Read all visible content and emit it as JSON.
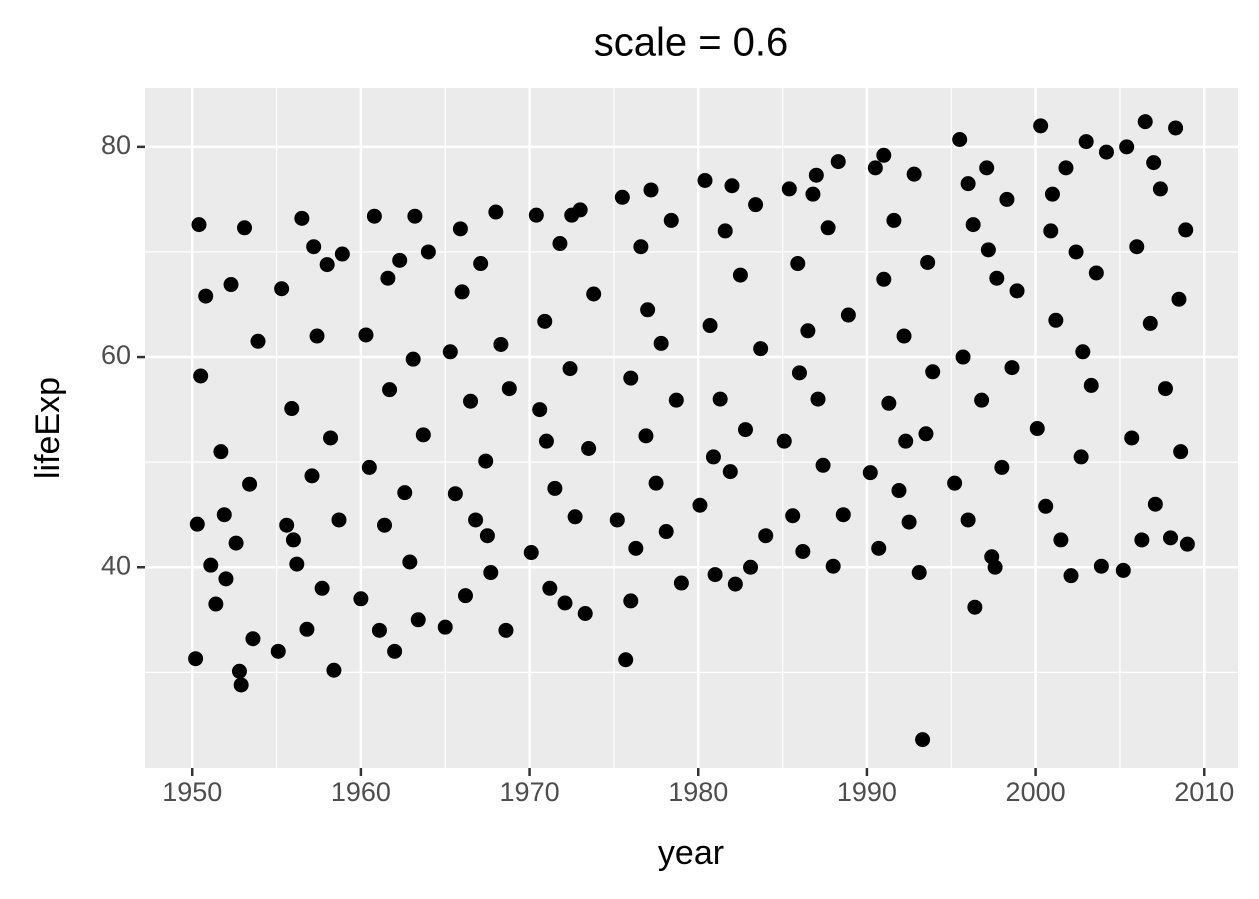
{
  "chart_data": {
    "type": "scatter",
    "title": "scale = 0.6",
    "x_label": "year",
    "y_label": "lifeExp",
    "x": [
      1950.2,
      1950.3,
      1950.5,
      1950.8,
      1951.1,
      1951.4,
      1951.7,
      1952.0,
      1952.3,
      1952.6,
      1952.9,
      1953.1,
      1953.4,
      1953.6,
      1953.9,
      1950.4,
      1952.8,
      1951.9,
      1955.1,
      1955.3,
      1955.6,
      1955.9,
      1956.2,
      1956.5,
      1956.8,
      1957.1,
      1957.4,
      1957.7,
      1958.0,
      1958.2,
      1958.4,
      1958.7,
      1958.9,
      1957.2,
      1956.0,
      1960.0,
      1960.3,
      1960.5,
      1960.8,
      1961.1,
      1961.4,
      1961.7,
      1962.0,
      1962.3,
      1962.6,
      1962.9,
      1963.2,
      1963.4,
      1963.7,
      1964.0,
      1961.6,
      1963.1,
      1965.0,
      1965.3,
      1965.6,
      1965.9,
      1966.2,
      1966.5,
      1966.8,
      1967.1,
      1967.4,
      1967.7,
      1968.0,
      1968.3,
      1968.6,
      1968.8,
      1966.0,
      1967.5,
      1970.1,
      1970.4,
      1970.6,
      1970.9,
      1971.2,
      1971.5,
      1971.8,
      1972.1,
      1972.4,
      1972.7,
      1973.0,
      1973.3,
      1973.5,
      1973.8,
      1972.5,
      1971.0,
      1975.2,
      1975.5,
      1975.7,
      1976.0,
      1976.3,
      1976.6,
      1976.9,
      1977.2,
      1977.5,
      1977.8,
      1978.1,
      1978.4,
      1978.7,
      1979.0,
      1977.0,
      1976.0,
      1980.1,
      1980.4,
      1980.7,
      1981.0,
      1981.3,
      1981.6,
      1981.9,
      1982.2,
      1982.5,
      1982.8,
      1983.1,
      1983.4,
      1983.7,
      1984.0,
      1982.0,
      1980.9,
      1985.1,
      1985.4,
      1985.6,
      1985.9,
      1986.2,
      1986.5,
      1986.8,
      1987.1,
      1987.4,
      1987.7,
      1988.0,
      1988.3,
      1988.6,
      1988.9,
      1987.0,
      1986.0,
      1990.2,
      1990.5,
      1990.7,
      1991.0,
      1991.3,
      1991.6,
      1991.9,
      1992.2,
      1992.5,
      1992.8,
      1993.1,
      1993.3,
      1993.6,
      1993.9,
      1991.0,
      1992.3,
      1993.5,
      1995.2,
      1995.5,
      1995.7,
      1996.0,
      1996.3,
      1996.4,
      1996.8,
      1997.1,
      1997.4,
      1997.7,
      1998.0,
      1998.3,
      1998.6,
      1998.9,
      1997.2,
      1996.0,
      1997.6,
      2000.1,
      2000.3,
      2000.6,
      2000.9,
      2001.2,
      2001.5,
      2001.8,
      2002.1,
      2002.4,
      2002.7,
      2003.0,
      2003.3,
      2003.6,
      2003.9,
      2004.2,
      2001.0,
      2002.8,
      2005.2,
      2005.4,
      2005.7,
      2006.0,
      2006.3,
      2006.5,
      2006.8,
      2007.1,
      2007.4,
      2007.7,
      2008.0,
      2008.3,
      2008.6,
      2008.9,
      2009.0,
      2007.0,
      2008.5
    ],
    "y": [
      31.3,
      44.1,
      58.2,
      65.8,
      40.2,
      36.5,
      51.0,
      38.9,
      66.9,
      42.3,
      28.8,
      72.3,
      47.9,
      33.2,
      61.5,
      72.6,
      30.1,
      45.0,
      32.0,
      66.5,
      44.0,
      55.1,
      40.3,
      73.2,
      34.1,
      48.7,
      62.0,
      38.0,
      68.8,
      52.3,
      30.2,
      44.5,
      69.8,
      70.5,
      42.6,
      37.0,
      62.1,
      49.5,
      73.4,
      34.0,
      44.0,
      56.9,
      32.0,
      69.2,
      47.1,
      40.5,
      73.4,
      35.0,
      52.6,
      70.0,
      67.5,
      59.8,
      34.3,
      60.5,
      47.0,
      72.2,
      37.3,
      55.8,
      44.5,
      68.9,
      50.1,
      39.5,
      73.8,
      61.2,
      34.0,
      57.0,
      66.2,
      43.0,
      41.4,
      73.5,
      55.0,
      63.4,
      38.0,
      47.5,
      70.8,
      36.6,
      58.9,
      44.8,
      74.0,
      35.6,
      51.3,
      66.0,
      73.5,
      52.0,
      44.5,
      75.2,
      31.2,
      58.0,
      41.8,
      70.5,
      52.5,
      75.9,
      48.0,
      61.3,
      43.4,
      73.0,
      55.9,
      38.5,
      64.5,
      36.8,
      45.9,
      76.8,
      63.0,
      39.3,
      56.0,
      72.0,
      49.1,
      38.4,
      67.8,
      53.1,
      40.0,
      74.5,
      60.8,
      43.0,
      76.3,
      50.5,
      52.0,
      76.0,
      44.9,
      68.9,
      41.5,
      62.5,
      75.5,
      56.0,
      49.7,
      72.3,
      40.1,
      78.6,
      45.0,
      64.0,
      77.3,
      58.5,
      49.0,
      78.0,
      41.8,
      67.4,
      55.6,
      73.0,
      47.3,
      62.0,
      44.3,
      77.4,
      39.5,
      23.6,
      69.0,
      58.6,
      79.2,
      52.0,
      52.7,
      48.0,
      80.7,
      60.0,
      44.5,
      72.6,
      36.2,
      55.9,
      78.0,
      41.0,
      67.5,
      49.5,
      75.0,
      59.0,
      66.3,
      70.2,
      76.5,
      40.0,
      53.2,
      82.0,
      45.8,
      72.0,
      63.5,
      42.6,
      78.0,
      39.2,
      70.0,
      50.5,
      80.5,
      57.3,
      68.0,
      40.1,
      79.5,
      75.5,
      60.5,
      39.7,
      80.0,
      52.3,
      70.5,
      42.6,
      82.4,
      63.2,
      46.0,
      76.0,
      57.0,
      42.8,
      81.8,
      51.0,
      72.1,
      42.2,
      78.5,
      65.5
    ],
    "color": "#000000",
    "xlim": [
      1947.2,
      2012.0
    ],
    "ylim": [
      20.9,
      85.6
    ],
    "xticks": [
      1950,
      1960,
      1970,
      1980,
      1990,
      2000,
      2010
    ],
    "yticks": [
      40,
      60,
      80
    ],
    "x_minor_ticks": [
      1955,
      1965,
      1975,
      1985,
      1995,
      2005
    ],
    "y_minor_ticks": [
      30,
      50,
      70
    ],
    "grid": true
  }
}
